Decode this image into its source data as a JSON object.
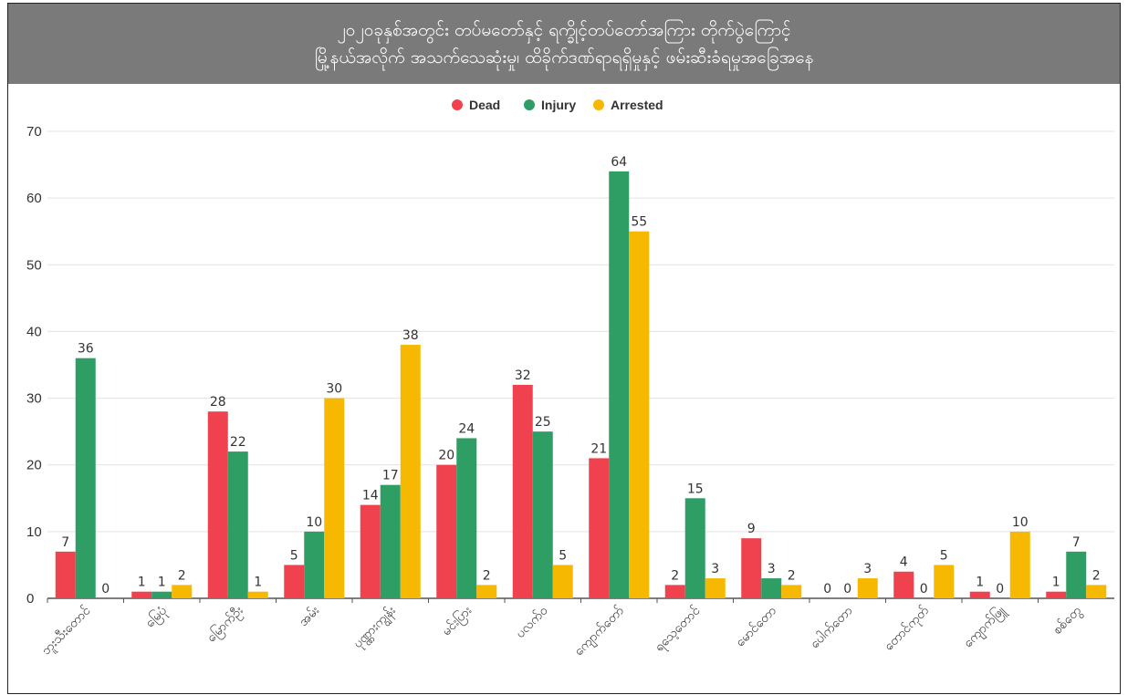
{
  "colors": {
    "dead": "#f0424e",
    "injury": "#2e9e64",
    "arrested": "#f6b800",
    "title_bg": "#7a7a7a"
  },
  "chart_data": {
    "type": "bar",
    "title": "၂၀၂၀ခုနှစ်အတွင်း တပ်မတော်နှင့် ရက္ခိုင့်တပ်တော်အကြား တိုက်ပွဲကြောင့်",
    "subtitle": "မြို့နယ်အလိုက် အသက်သေဆုံးမှု၊ ထိခိုက်ဒဏ်ရာရရှိမှုနှင့် ဖမ်းဆီးခံရမှုအခြေအနေ",
    "xlabel": "",
    "ylabel": "",
    "ylim": [
      0,
      70
    ],
    "yticks": [
      0,
      10,
      20,
      30,
      40,
      50,
      60,
      70
    ],
    "grid": true,
    "legend_position": "top-center",
    "categories": [
      "ဘူးသီးတောင်",
      "မြေပုံ",
      "မြောက်ဦး",
      "အမ်း",
      "ပုဏ္ဏားကျွန်း",
      "မင်းပြား",
      "ပလက်ဝ",
      "ကျောက်တော်",
      "ရသေ့တောင်",
      "မောင်တော",
      "ပေါက်တော",
      "တောင်ကုတ်",
      "ကျောက်ဖြူ",
      "စစ်တွေ"
    ],
    "series": [
      {
        "name": "Dead",
        "values": [
          7,
          1,
          28,
          5,
          14,
          20,
          32,
          21,
          2,
          9,
          0,
          4,
          1,
          1
        ]
      },
      {
        "name": "Injury",
        "values": [
          36,
          1,
          22,
          10,
          17,
          24,
          25,
          64,
          15,
          3,
          0,
          0,
          0,
          7
        ]
      },
      {
        "name": "Arrested",
        "values": [
          0,
          2,
          1,
          30,
          38,
          2,
          5,
          55,
          3,
          2,
          3,
          5,
          10,
          2
        ]
      }
    ]
  }
}
